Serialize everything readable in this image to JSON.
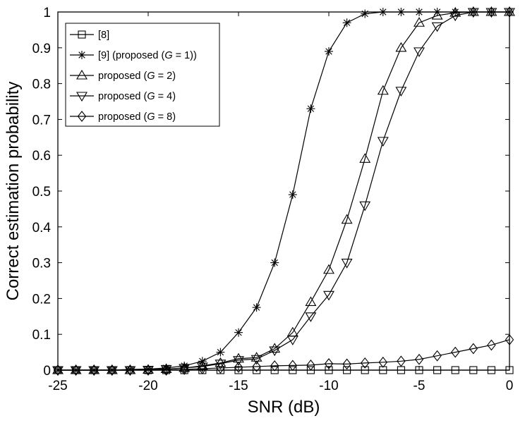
{
  "chart_data": {
    "type": "line",
    "title": "",
    "xlabel": "SNR (dB)",
    "ylabel": "Correct estimation probability",
    "xlim": [
      -25,
      0
    ],
    "ylim": [
      0,
      1
    ],
    "x_ticks": [
      -25,
      -20,
      -15,
      -10,
      -5,
      0
    ],
    "y_ticks": [
      0,
      0.1,
      0.2,
      0.3,
      0.4,
      0.5,
      0.6,
      0.7,
      0.8,
      0.9,
      1
    ],
    "grid": false,
    "legend_position": "top-left",
    "series": [
      {
        "name": "[8]",
        "marker": "square",
        "x": [
          -25,
          -24,
          -23,
          -22,
          -21,
          -20,
          -19,
          -18,
          -17,
          -16,
          -15,
          -14,
          -13,
          -12,
          -11,
          -10,
          -9,
          -8,
          -7,
          -6,
          -5,
          -4,
          -3,
          -2,
          -1,
          0
        ],
        "y": [
          0,
          0,
          0,
          0,
          0,
          0,
          0,
          0,
          0,
          0,
          0,
          0,
          0,
          0,
          0,
          0,
          0,
          0,
          0,
          0,
          0,
          0,
          0,
          0,
          0,
          0
        ]
      },
      {
        "name": "[9] (proposed (G = 1))",
        "marker": "star",
        "x": [
          -25,
          -24,
          -23,
          -22,
          -21,
          -20,
          -19,
          -18,
          -17,
          -16,
          -15,
          -14,
          -13,
          -12,
          -11,
          -10,
          -9,
          -8,
          -7,
          -6,
          -5,
          -4,
          -3,
          -2,
          -1,
          0
        ],
        "y": [
          0,
          0,
          0,
          0,
          0.002,
          0.003,
          0.006,
          0.012,
          0.025,
          0.05,
          0.105,
          0.175,
          0.3,
          0.49,
          0.73,
          0.89,
          0.97,
          0.995,
          1,
          1,
          1,
          1,
          1,
          1,
          1,
          1
        ]
      },
      {
        "name": "proposed (G = 2)",
        "marker": "triangle-up",
        "x": [
          -25,
          -24,
          -23,
          -22,
          -21,
          -20,
          -19,
          -18,
          -17,
          -16,
          -15,
          -14,
          -13,
          -12,
          -11,
          -10,
          -9,
          -8,
          -7,
          -6,
          -5,
          -4,
          -3,
          -2,
          -1,
          0
        ],
        "y": [
          0,
          0,
          0,
          0,
          0,
          0.001,
          0.003,
          0.006,
          0.012,
          0.02,
          0.032,
          0.035,
          0.06,
          0.105,
          0.19,
          0.28,
          0.42,
          0.59,
          0.78,
          0.9,
          0.97,
          0.99,
          0.998,
          1,
          1,
          1
        ]
      },
      {
        "name": "proposed (G = 4)",
        "marker": "triangle-down",
        "x": [
          -25,
          -24,
          -23,
          -22,
          -21,
          -20,
          -19,
          -18,
          -17,
          -16,
          -15,
          -14,
          -13,
          -12,
          -11,
          -10,
          -9,
          -8,
          -7,
          -6,
          -5,
          -4,
          -3,
          -2,
          -1,
          0
        ],
        "y": [
          0,
          0,
          0,
          0,
          0,
          0.001,
          0.003,
          0.006,
          0.01,
          0.018,
          0.028,
          0.031,
          0.055,
          0.085,
          0.15,
          0.21,
          0.3,
          0.46,
          0.64,
          0.78,
          0.89,
          0.96,
          0.99,
          1,
          1,
          1
        ]
      },
      {
        "name": "proposed (G = 8)",
        "marker": "diamond",
        "x": [
          -25,
          -24,
          -23,
          -22,
          -21,
          -20,
          -19,
          -18,
          -17,
          -16,
          -15,
          -14,
          -13,
          -12,
          -11,
          -10,
          -9,
          -8,
          -7,
          -6,
          -5,
          -4,
          -3,
          -2,
          -1,
          0
        ],
        "y": [
          0,
          0,
          0,
          0,
          0,
          0,
          0,
          0.002,
          0.004,
          0.006,
          0.008,
          0.01,
          0.012,
          0.013,
          0.014,
          0.018,
          0.017,
          0.02,
          0.022,
          0.025,
          0.03,
          0.04,
          0.05,
          0.06,
          0.07,
          0.085
        ]
      }
    ]
  }
}
